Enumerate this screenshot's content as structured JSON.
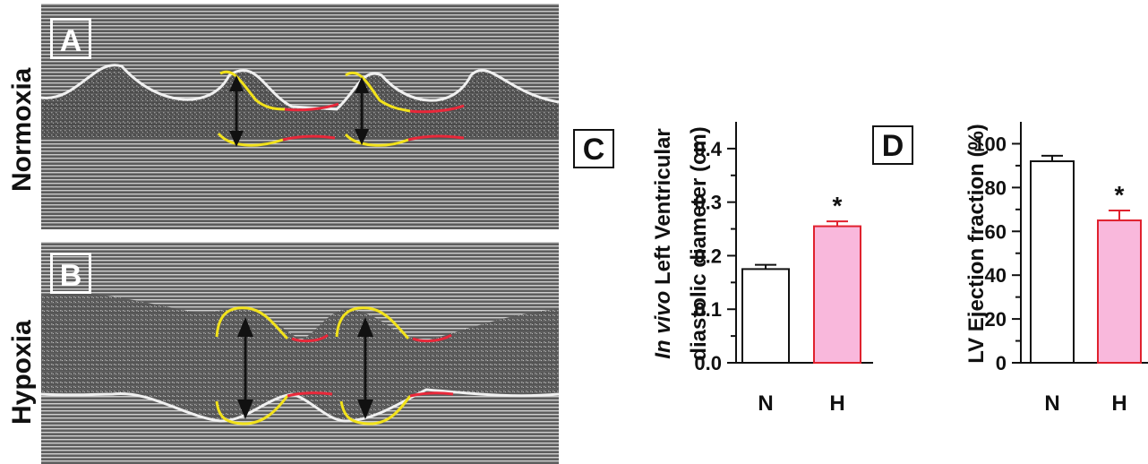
{
  "panels": {
    "a": {
      "letter": "A",
      "row_label": "Normoxia"
    },
    "b": {
      "letter": "B",
      "row_label": "Hypoxia"
    },
    "c": {
      "letter": "C"
    },
    "d": {
      "letter": "D"
    }
  },
  "colors": {
    "outline_yellow": "#f2e21b",
    "outline_red": "#e8283a",
    "bar_normal": "#ffffff",
    "bar_hypoxia": "#f9b8dc",
    "bar_hypoxia_edge": "#e0212e",
    "axis": "#111111"
  },
  "chart_data": [
    {
      "type": "bar",
      "panel": "C",
      "categories": [
        "N",
        "H"
      ],
      "values": [
        0.175,
        0.255
      ],
      "errors": [
        0.008,
        0.009
      ],
      "significance": [
        "",
        "*"
      ],
      "ylabel_line1_italic": "In vivo",
      "ylabel_line1_rest": " Left Ventricular",
      "ylabel_line2": "diastolic diameter (cm)",
      "ylim": [
        0,
        0.45
      ],
      "yticks": [
        "0.0",
        "0.1",
        "0.2",
        "0.3",
        "0.4"
      ],
      "ytick_values": [
        0,
        0.1,
        0.2,
        0.3,
        0.4
      ]
    },
    {
      "type": "bar",
      "panel": "D",
      "categories": [
        "N",
        "H"
      ],
      "values": [
        92,
        65
      ],
      "errors": [
        2.5,
        4.5
      ],
      "significance": [
        "",
        "*"
      ],
      "ylabel": "LV Ejection fraction (%)",
      "ylim": [
        0,
        110
      ],
      "yticks": [
        "0",
        "20",
        "40",
        "60",
        "80",
        "100"
      ],
      "ytick_values": [
        0,
        20,
        40,
        60,
        80,
        100
      ]
    }
  ]
}
